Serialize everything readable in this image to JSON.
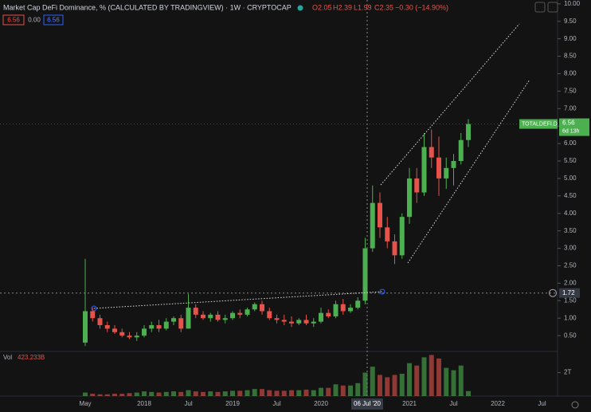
{
  "chart_data": {
    "type": "candlestick",
    "title": "Market Cap DeFi Dominance, % (CALCULATED BY TRADINGVIEW) · 1W · CRYPTOCAP",
    "ohlc_labels": [
      "O2.05",
      "H2.39",
      "L1.99",
      "C2.35",
      "−0.30 (−14.90%)"
    ],
    "indicator_boxes": [
      "6.56",
      "0.00",
      "6.56"
    ],
    "symbol_tag": "TOTALDEFI.D",
    "countdown": "6d 13h",
    "crosshair_price": 1.72,
    "crosshair_date": "06 Jul '20",
    "categories": [
      "May",
      null,
      null,
      null,
      null,
      null,
      null,
      null,
      "2018",
      null,
      null,
      null,
      null,
      null,
      "Jul",
      null,
      null,
      null,
      null,
      null,
      "2019",
      null,
      null,
      null,
      null,
      null,
      "Jul",
      null,
      null,
      null,
      null,
      null,
      "2020",
      null,
      null,
      null,
      null,
      null,
      null,
      null,
      null,
      null,
      null,
      null,
      "2021",
      null,
      null,
      null,
      null,
      null,
      "Jul",
      null,
      null,
      null,
      null,
      null,
      "2022",
      null,
      null,
      null,
      null,
      null,
      "Jul",
      null
    ],
    "open": [
      0.3,
      1.2,
      1.0,
      0.8,
      0.7,
      0.6,
      0.5,
      0.45,
      0.5,
      0.7,
      0.8,
      0.7,
      0.9,
      1.0,
      0.7,
      1.3,
      1.1,
      1.0,
      1.1,
      0.95,
      1.0,
      1.15,
      1.1,
      1.25,
      1.4,
      1.2,
      1.0,
      0.95,
      0.9,
      0.85,
      0.95,
      0.85,
      0.9,
      1.15,
      1.05,
      1.4,
      1.2,
      1.3,
      1.5,
      3.0,
      4.3,
      3.6,
      3.2,
      2.8,
      3.9,
      5.0,
      4.6,
      5.9,
      5.6,
      5.0,
      5.3,
      5.5,
      6.1,
      null,
      null,
      null,
      null,
      null,
      null,
      null,
      null,
      null,
      null,
      null
    ],
    "high": [
      2.7,
      1.3,
      1.1,
      0.9,
      0.8,
      0.7,
      0.6,
      0.6,
      0.8,
      0.9,
      0.95,
      1.0,
      1.05,
      1.1,
      1.7,
      1.4,
      1.2,
      1.15,
      1.2,
      1.1,
      1.2,
      1.25,
      1.3,
      1.45,
      1.5,
      1.3,
      1.1,
      1.1,
      1.05,
      1.0,
      1.1,
      1.0,
      1.3,
      1.25,
      1.5,
      1.55,
      1.4,
      1.6,
      3.3,
      4.8,
      4.6,
      3.9,
      3.4,
      4.0,
      5.3,
      5.3,
      6.3,
      6.4,
      6.2,
      5.6,
      5.7,
      6.3,
      6.7,
      null,
      null,
      null,
      null,
      null,
      null,
      null,
      null,
      null,
      null,
      null
    ],
    "low": [
      0.2,
      0.9,
      0.7,
      0.6,
      0.55,
      0.45,
      0.4,
      0.35,
      0.45,
      0.6,
      0.6,
      0.65,
      0.8,
      0.6,
      0.7,
      1.0,
      0.95,
      0.9,
      0.9,
      0.85,
      0.95,
      1.0,
      1.05,
      1.2,
      1.1,
      0.95,
      0.85,
      0.8,
      0.75,
      0.8,
      0.8,
      0.75,
      0.85,
      1.0,
      1.0,
      1.1,
      1.15,
      1.25,
      1.4,
      2.9,
      3.3,
      3.0,
      2.55,
      2.7,
      3.7,
      4.3,
      4.5,
      5.3,
      4.5,
      4.7,
      4.8,
      5.4,
      5.9,
      null,
      null,
      null,
      null,
      null,
      null,
      null,
      null,
      null,
      null,
      null
    ],
    "close": [
      1.2,
      1.0,
      0.8,
      0.7,
      0.6,
      0.5,
      0.45,
      0.5,
      0.7,
      0.8,
      0.7,
      0.9,
      1.0,
      0.7,
      1.3,
      1.1,
      1.0,
      1.1,
      0.95,
      1.0,
      1.15,
      1.1,
      1.25,
      1.4,
      1.2,
      1.0,
      0.95,
      0.9,
      0.85,
      0.95,
      0.85,
      0.9,
      1.15,
      1.05,
      1.4,
      1.2,
      1.3,
      1.5,
      3.0,
      4.3,
      3.6,
      3.2,
      2.8,
      3.9,
      5.0,
      4.6,
      5.9,
      5.6,
      5.0,
      5.3,
      5.5,
      6.1,
      6.56,
      null,
      null,
      null,
      null,
      null,
      null,
      null,
      null,
      null,
      null,
      null
    ],
    "volume": {
      "name": "Vol",
      "last_label": "423.233B",
      "values": [
        0.3,
        0.2,
        0.15,
        0.15,
        0.2,
        0.2,
        0.25,
        0.3,
        0.4,
        0.35,
        0.3,
        0.35,
        0.4,
        0.35,
        0.5,
        0.4,
        0.35,
        0.4,
        0.35,
        0.4,
        0.45,
        0.45,
        0.5,
        0.6,
        0.6,
        0.5,
        0.45,
        0.45,
        0.5,
        0.5,
        0.55,
        0.5,
        0.7,
        0.7,
        1.0,
        0.9,
        0.9,
        1.1,
        2.0,
        2.5,
        1.8,
        1.6,
        1.8,
        1.9,
        2.8,
        2.6,
        3.3,
        3.5,
        3.2,
        2.4,
        2.2,
        2.6,
        0.423233,
        null,
        null,
        null,
        null,
        null,
        null,
        null,
        null,
        null,
        null,
        null
      ]
    },
    "ylim": [
      0.07,
      10.11
    ],
    "yticks": [
      {
        "value": 0.5,
        "label": "0.50"
      },
      {
        "value": 1,
        "label": "1.00"
      },
      {
        "value": 1.5,
        "label": "1.50"
      },
      {
        "value": 2,
        "label": "2.00"
      },
      {
        "value": 2.5,
        "label": "2.50"
      },
      {
        "value": 3,
        "label": "3.00"
      },
      {
        "value": 3.5,
        "label": "3.50"
      },
      {
        "value": 4,
        "label": "4.00"
      },
      {
        "value": 4.5,
        "label": "4.50"
      },
      {
        "value": 5,
        "label": "5.00"
      },
      {
        "value": 5.5,
        "label": "5.50"
      },
      {
        "value": 6,
        "label": "6.00"
      },
      {
        "value": 6.5,
        "label": "6.50"
      },
      {
        "value": 7,
        "label": "7.00"
      },
      {
        "value": 7.5,
        "label": "7.50"
      },
      {
        "value": 8,
        "label": "8.00"
      },
      {
        "value": 8.5,
        "label": "8.50"
      },
      {
        "value": 9,
        "label": "9.00"
      },
      {
        "value": 9.5,
        "label": "9.50"
      },
      {
        "value": 10,
        "label": "10.00"
      }
    ],
    "volume_ylim": [
      0,
      3.8
    ],
    "volume_yticks": [
      {
        "value": 2,
        "label": "2T"
      }
    ],
    "up_color": "#4caf50",
    "down_color": "#e5534b"
  }
}
